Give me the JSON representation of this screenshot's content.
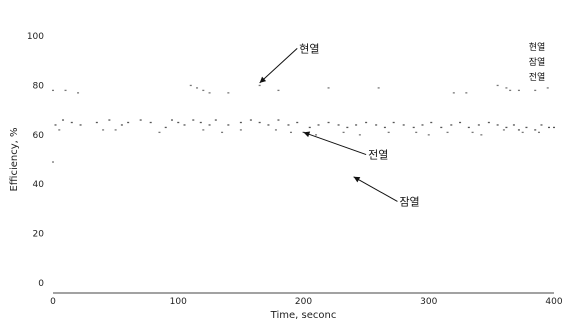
{
  "chart_data": {
    "type": "scatter",
    "title": "",
    "xlabel": "Time, seconc",
    "ylabel": "Efficiency, %",
    "xlim": [
      0,
      400
    ],
    "ylim": [
      0,
      100
    ],
    "xticks": [
      "0",
      "100",
      "200",
      "300",
      "400"
    ],
    "yticks": [
      "0",
      "20",
      "40",
      "60",
      "80",
      "100"
    ],
    "grid": false,
    "legend": {
      "placement": "top-right",
      "entries": [
        "현열",
        "잠열",
        "전열"
      ]
    },
    "annotations": [
      {
        "text": "현열",
        "point": [
          165,
          81
        ],
        "text_at": [
          195,
          95
        ]
      },
      {
        "text": "전열",
        "point": [
          200,
          61
        ],
        "text_at": [
          250,
          52
        ]
      },
      {
        "text": "잠열",
        "point": [
          240,
          43
        ],
        "text_at": [
          275,
          33
        ]
      }
    ],
    "series": [
      {
        "name": "현열",
        "points": [
          [
            0,
            78
          ],
          [
            10,
            78
          ],
          [
            20,
            77
          ],
          [
            110,
            80
          ],
          [
            115,
            79
          ],
          [
            120,
            78
          ],
          [
            125,
            77
          ],
          [
            140,
            77
          ],
          [
            165,
            80
          ],
          [
            180,
            78
          ],
          [
            220,
            79
          ],
          [
            260,
            79
          ],
          [
            320,
            77
          ],
          [
            330,
            77
          ],
          [
            355,
            80
          ],
          [
            362,
            79
          ],
          [
            365,
            78
          ],
          [
            372,
            78
          ],
          [
            385,
            78
          ],
          [
            395,
            79
          ]
        ]
      },
      {
        "name": "전열",
        "points": [
          [
            2,
            64
          ],
          [
            8,
            66
          ],
          [
            15,
            65
          ],
          [
            22,
            64
          ],
          [
            35,
            65
          ],
          [
            45,
            66
          ],
          [
            55,
            64
          ],
          [
            60,
            65
          ],
          [
            70,
            66
          ],
          [
            78,
            65
          ],
          [
            90,
            63
          ],
          [
            95,
            66
          ],
          [
            100,
            65
          ],
          [
            105,
            64
          ],
          [
            112,
            66
          ],
          [
            118,
            65
          ],
          [
            125,
            64
          ],
          [
            130,
            66
          ],
          [
            140,
            64
          ],
          [
            150,
            65
          ],
          [
            158,
            66
          ],
          [
            165,
            65
          ],
          [
            172,
            64
          ],
          [
            180,
            66
          ],
          [
            188,
            64
          ],
          [
            195,
            65
          ],
          [
            205,
            63
          ],
          [
            212,
            64
          ],
          [
            220,
            65
          ],
          [
            228,
            64
          ],
          [
            235,
            63
          ],
          [
            242,
            64
          ],
          [
            250,
            65
          ],
          [
            258,
            64
          ],
          [
            265,
            63
          ],
          [
            272,
            65
          ],
          [
            280,
            64
          ],
          [
            288,
            63
          ],
          [
            295,
            64
          ],
          [
            302,
            65
          ],
          [
            310,
            63
          ],
          [
            318,
            64
          ],
          [
            325,
            65
          ],
          [
            332,
            63
          ],
          [
            340,
            64
          ],
          [
            348,
            65
          ],
          [
            355,
            64
          ],
          [
            362,
            63
          ],
          [
            368,
            64
          ],
          [
            372,
            62
          ],
          [
            378,
            63
          ],
          [
            385,
            62
          ],
          [
            390,
            64
          ],
          [
            396,
            63
          ],
          [
            400,
            63
          ]
        ]
      },
      {
        "name": "잠열",
        "points": [
          [
            0,
            49
          ],
          [
            5,
            62
          ],
          [
            40,
            62
          ],
          [
            50,
            62
          ],
          [
            85,
            61
          ],
          [
            120,
            62
          ],
          [
            135,
            61
          ],
          [
            150,
            62
          ],
          [
            178,
            62
          ],
          [
            190,
            61
          ],
          [
            200,
            61
          ],
          [
            210,
            60
          ],
          [
            232,
            61
          ],
          [
            245,
            60
          ],
          [
            268,
            61
          ],
          [
            290,
            61
          ],
          [
            300,
            60
          ],
          [
            315,
            61
          ],
          [
            335,
            61
          ],
          [
            342,
            60
          ],
          [
            360,
            62
          ],
          [
            375,
            61
          ],
          [
            388,
            61
          ]
        ]
      }
    ]
  }
}
